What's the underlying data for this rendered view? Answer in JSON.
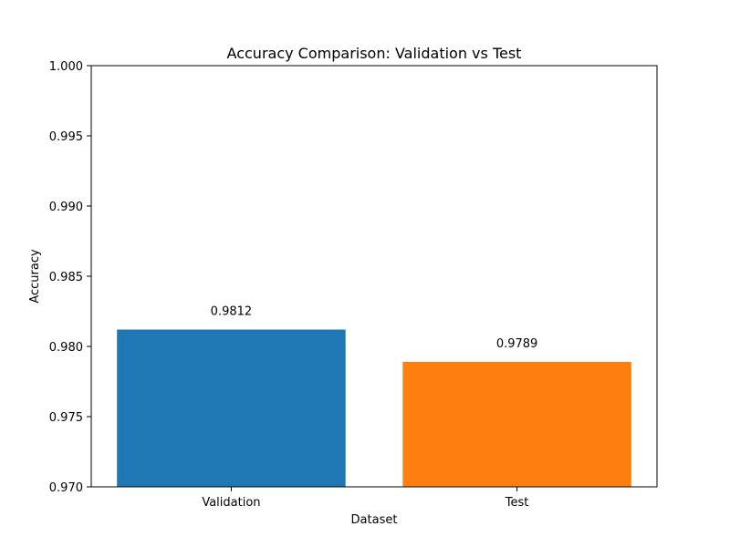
{
  "chart_data": {
    "type": "bar",
    "title": "Accuracy Comparison: Validation vs Test",
    "xlabel": "Dataset",
    "ylabel": "Accuracy",
    "categories": [
      "Validation",
      "Test"
    ],
    "values": [
      0.9812,
      0.9789
    ],
    "value_labels": [
      "0.9812",
      "0.9789"
    ],
    "colors": [
      "#1f77b4",
      "#ff7f0e"
    ],
    "ylim": [
      0.97,
      1.0
    ],
    "yticks": [
      0.97,
      0.975,
      0.98,
      0.985,
      0.99,
      0.995,
      1.0
    ],
    "ytick_labels": [
      "0.970",
      "0.975",
      "0.980",
      "0.985",
      "0.990",
      "0.995",
      "1.000"
    ],
    "grid": false,
    "legend": "none"
  }
}
